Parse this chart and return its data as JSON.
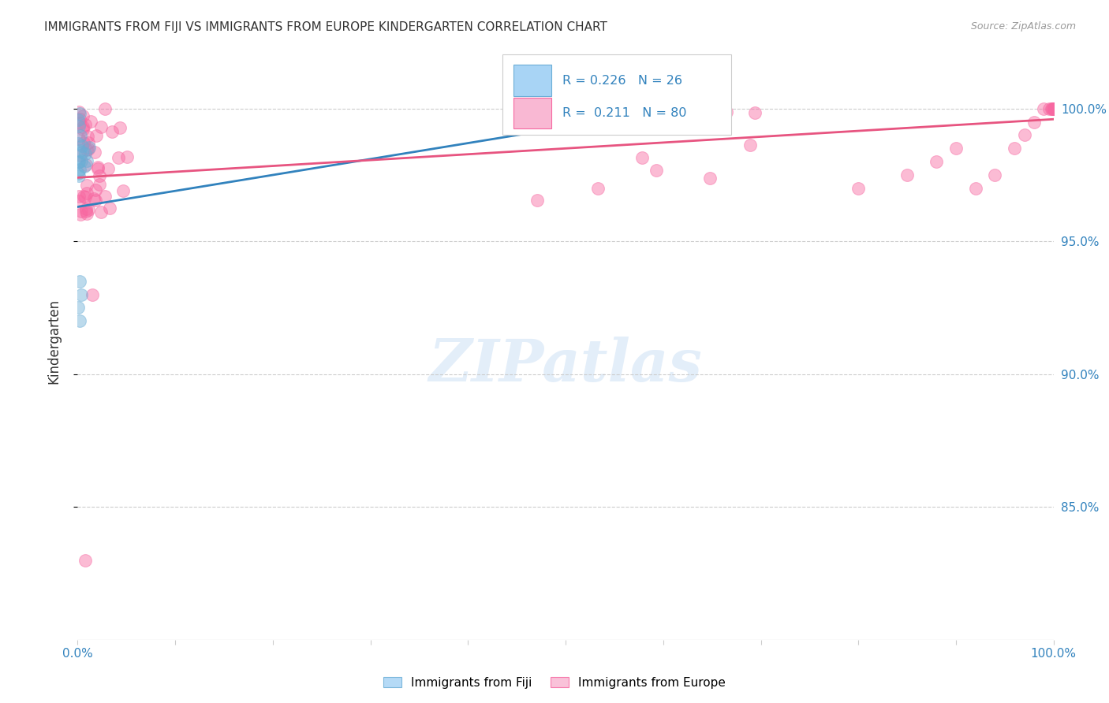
{
  "title": "IMMIGRANTS FROM FIJI VS IMMIGRANTS FROM EUROPE KINDERGARTEN CORRELATION CHART",
  "source": "Source: ZipAtlas.com",
  "ylabel": "Kindergarten",
  "xlim": [
    0.0,
    1.0
  ],
  "ylim": [
    0.8,
    1.025
  ],
  "fiji_color": "#6baed6",
  "fiji_color_fill": "#a8d4f5",
  "europe_color": "#f768a1",
  "europe_color_fill": "#f9b8d3",
  "fiji_line_color": "#3182bd",
  "europe_line_color": "#e75480",
  "fiji_R": 0.226,
  "fiji_N": 26,
  "europe_R": 0.211,
  "europe_N": 80,
  "watermark": "ZIPatlas",
  "legend_fiji_label": "Immigrants from Fiji",
  "legend_europe_label": "Immigrants from Europe",
  "background_color": "#ffffff",
  "label_color": "#3182bd",
  "title_color": "#333333",
  "source_color": "#999999",
  "grid_color": "#cccccc",
  "ytick_vals": [
    0.85,
    0.9,
    0.95,
    1.0
  ],
  "ytick_labels": [
    "85.0%",
    "90.0%",
    "95.0%",
    "100.0%"
  ],
  "xtick_vals": [
    0.0,
    0.1,
    0.2,
    0.3,
    0.4,
    0.5,
    0.6,
    0.7,
    0.8,
    0.9,
    1.0
  ],
  "fiji_line_x": [
    0.0,
    0.65
  ],
  "fiji_line_y": [
    0.963,
    1.002
  ],
  "europe_line_x": [
    0.0,
    1.0
  ],
  "europe_line_y": [
    0.974,
    0.996
  ]
}
